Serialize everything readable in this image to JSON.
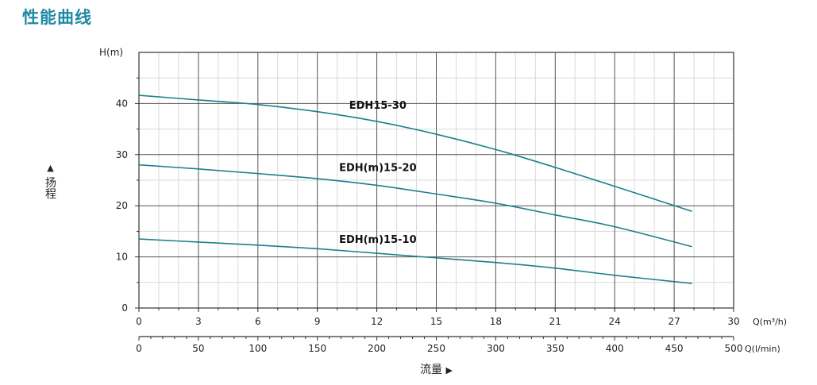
{
  "page": {
    "title": "性能曲线"
  },
  "chart_data": {
    "type": "line",
    "ylabel_unit": "H(m)",
    "ylabel": "扬程",
    "xlabel": "流量",
    "ylim": [
      0,
      50
    ],
    "xlim": [
      0,
      30
    ],
    "yticks": [
      0,
      10,
      20,
      30,
      40
    ],
    "xticks": [
      0,
      3,
      6,
      9,
      12,
      15,
      18,
      21,
      24,
      27,
      30
    ],
    "x_unit": "Q(m³/h)",
    "x2ticks": [
      0,
      50,
      100,
      150,
      200,
      250,
      300,
      350,
      400,
      450,
      500
    ],
    "x2_unit": "Q(l/min)",
    "grid": true,
    "series": [
      {
        "name": "EDH15-30",
        "x": [
          0,
          3,
          6,
          9,
          12,
          15,
          18,
          21,
          24,
          27.9
        ],
        "y": [
          41.6,
          40.7,
          39.8,
          38.4,
          36.5,
          34.0,
          31.0,
          27.5,
          23.8,
          18.9
        ]
      },
      {
        "name": "EDH(m)15-20",
        "x": [
          0,
          3,
          6,
          9,
          12,
          15,
          18,
          21,
          24,
          27.9
        ],
        "y": [
          28.0,
          27.2,
          26.3,
          25.3,
          24.0,
          22.3,
          20.5,
          18.2,
          15.9,
          12.0
        ]
      },
      {
        "name": "EDH(m)15-10",
        "x": [
          0,
          3,
          6,
          9,
          12,
          15,
          18,
          21,
          24,
          27.9
        ],
        "y": [
          13.5,
          12.9,
          12.3,
          11.6,
          10.7,
          9.8,
          8.9,
          7.8,
          6.4,
          4.8
        ]
      }
    ]
  }
}
